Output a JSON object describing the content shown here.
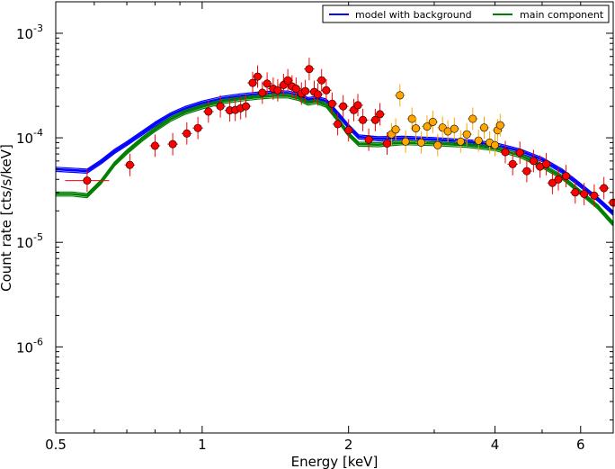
{
  "chart_data": {
    "type": "scatter",
    "xlabel": "Energy [keV]",
    "ylabel": "Count rate [cts/s/keV]",
    "xscale": "log",
    "yscale": "log",
    "xlim": [
      0.5,
      7.0
    ],
    "ylim": [
      1.5e-07,
      0.002
    ],
    "x_ticks": [
      {
        "value": 0.5,
        "label": "0.5"
      },
      {
        "value": 1,
        "label": "1"
      },
      {
        "value": 2,
        "label": "2"
      },
      {
        "value": 4,
        "label": "4"
      },
      {
        "value": 6,
        "label": "6"
      }
    ],
    "y_ticks": [
      {
        "value": 1e-06,
        "base": "10",
        "exp": "-6"
      },
      {
        "value": 1e-05,
        "base": "10",
        "exp": "-5"
      },
      {
        "value": 0.0001,
        "base": "10",
        "exp": "-4"
      },
      {
        "value": 0.001,
        "base": "10",
        "exp": "-3"
      }
    ],
    "legend_position": "top-right",
    "series": [
      {
        "name": "model with background",
        "kind": "line",
        "color": "#0000ff",
        "x": [
          0.5,
          0.54,
          0.58,
          0.62,
          0.66,
          0.7,
          0.75,
          0.8,
          0.86,
          0.92,
          1.0,
          1.1,
          1.2,
          1.3,
          1.4,
          1.5,
          1.58,
          1.65,
          1.72,
          1.8,
          1.9,
          2.0,
          2.1,
          2.3,
          2.6,
          3.0,
          3.5,
          4.0,
          4.5,
          5.0,
          5.5,
          6.0,
          6.5,
          7.0
        ],
        "y": [
          5e-05,
          4.9e-05,
          4.8e-05,
          5.9e-05,
          7.4e-05,
          8.8e-05,
          0.00011,
          0.000135,
          0.000165,
          0.00019,
          0.000215,
          0.000238,
          0.000252,
          0.000262,
          0.000268,
          0.000268,
          0.000255,
          0.000232,
          0.000238,
          0.000225,
          0.00017,
          0.000128,
          0.000102,
          9.8e-05,
          9.9e-05,
          9.6e-05,
          9.2e-05,
          8.6e-05,
          7.5e-05,
          6.2e-05,
          4.8e-05,
          3.5e-05,
          2.6e-05,
          1.9e-05
        ]
      },
      {
        "name": "main component",
        "kind": "line",
        "color": "#008000",
        "x": [
          0.5,
          0.54,
          0.58,
          0.62,
          0.66,
          0.7,
          0.75,
          0.8,
          0.86,
          0.92,
          1.0,
          1.1,
          1.2,
          1.3,
          1.4,
          1.5,
          1.58,
          1.65,
          1.72,
          1.8,
          1.9,
          2.0,
          2.1,
          2.3,
          2.6,
          3.0,
          3.5,
          4.0,
          4.5,
          5.0,
          5.5,
          6.0,
          6.5,
          7.0
        ],
        "y": [
          2.9e-05,
          2.9e-05,
          2.8e-05,
          3.8e-05,
          5.6e-05,
          7.3e-05,
          9.6e-05,
          0.00012,
          0.00015,
          0.000175,
          0.000198,
          0.000222,
          0.000235,
          0.000245,
          0.000252,
          0.000252,
          0.000238,
          0.000215,
          0.000222,
          0.000205,
          0.00015,
          0.000108,
          8.7e-05,
          8.6e-05,
          9e-05,
          8.8e-05,
          8.5e-05,
          7.9e-05,
          6.8e-05,
          5.4e-05,
          4.2e-05,
          3e-05,
          2.2e-05,
          1.5e-05
        ]
      },
      {
        "kind": "points",
        "color": "#ff0000",
        "x": [
          0.58,
          0.71,
          0.8,
          0.87,
          0.93,
          0.98,
          1.03,
          1.09,
          1.14,
          1.17,
          1.2,
          1.23,
          1.27,
          1.3,
          1.33,
          1.36,
          1.4,
          1.43,
          1.47,
          1.5,
          1.53,
          1.56,
          1.6,
          1.63,
          1.66,
          1.7,
          1.73,
          1.76,
          1.8,
          1.85,
          1.9,
          1.95,
          2.0,
          2.05,
          2.09,
          2.14,
          2.2,
          2.27,
          2.32,
          2.4,
          4.2,
          4.35,
          4.5,
          4.65,
          4.8,
          4.95,
          5.1,
          5.25,
          5.4,
          5.6,
          5.85,
          6.1,
          6.4,
          6.7,
          7.0,
          7.3,
          7.6
        ],
        "y": [
          3.9e-05,
          5.5e-05,
          8.4e-05,
          8.7e-05,
          0.00011,
          0.000124,
          0.000178,
          0.0002,
          0.000183,
          0.000185,
          0.000192,
          0.0002,
          0.000335,
          0.000385,
          0.00027,
          0.00033,
          0.000295,
          0.000285,
          0.00032,
          0.000355,
          0.00031,
          0.000295,
          0.000265,
          0.00028,
          0.000455,
          0.000275,
          0.00026,
          0.000355,
          0.000285,
          0.000212,
          0.000135,
          0.0002,
          0.000118,
          0.000184,
          0.000205,
          0.000148,
          9.6e-05,
          0.000148,
          0.000168,
          8.8e-05,
          7.3e-05,
          5.6e-05,
          7.2e-05,
          4.8e-05,
          6e-05,
          5.3e-05,
          5.6e-05,
          3.7e-05,
          4e-05,
          4.3e-05,
          3e-05,
          2.9e-05,
          2.8e-05,
          3.3e-05,
          2.4e-05,
          1.6e-05,
          1.45e-05
        ]
      },
      {
        "kind": "points",
        "color": "#ffa500",
        "x": [
          2.45,
          2.5,
          2.55,
          2.62,
          2.7,
          2.75,
          2.82,
          2.9,
          2.98,
          3.05,
          3.12,
          3.2,
          3.3,
          3.4,
          3.5,
          3.6,
          3.7,
          3.8,
          3.9,
          4.0,
          4.05,
          4.1
        ],
        "y": [
          0.000108,
          0.00012,
          0.000255,
          9.2e-05,
          0.000152,
          0.000123,
          9e-05,
          0.000128,
          0.000142,
          8.5e-05,
          0.000125,
          0.000115,
          0.000122,
          9.2e-05,
          0.000108,
          0.000152,
          9.4e-05,
          0.000125,
          9e-05,
          8.5e-05,
          0.000118,
          0.000132
        ]
      }
    ]
  }
}
